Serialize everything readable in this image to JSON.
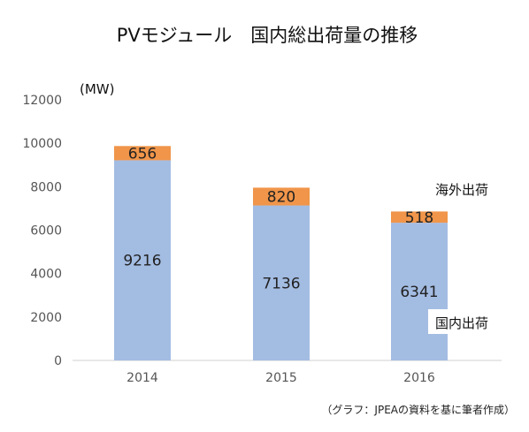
{
  "chart_data": {
    "type": "bar",
    "stacked": true,
    "title": "PVモジュール　国内総出荷量の推移",
    "ylabel": "(MW)",
    "xlabel": "",
    "ylim": [
      0,
      12000
    ],
    "yticks": [
      0,
      2000,
      4000,
      6000,
      8000,
      10000,
      12000
    ],
    "categories": [
      "2014",
      "2015",
      "2016"
    ],
    "series": [
      {
        "name": "国内出荷",
        "values": [
          9216,
          7136,
          6341
        ],
        "color": "#a3bce2"
      },
      {
        "name": "海外出荷",
        "values": [
          656,
          820,
          518
        ],
        "color": "#f0954a"
      }
    ],
    "grid": false,
    "legend": "inline-right",
    "source_note": "（グラフ：JPEAの資料を基に筆者作成）"
  }
}
